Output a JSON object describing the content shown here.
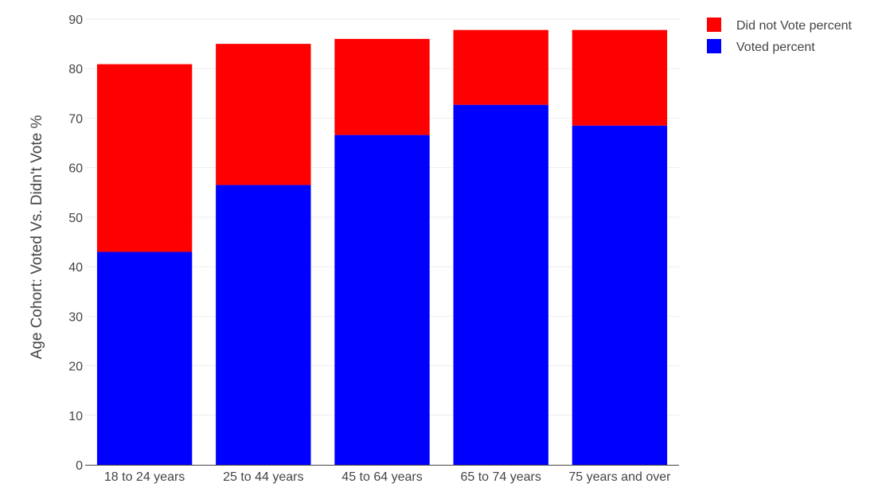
{
  "chart_data": {
    "type": "bar",
    "stacked": true,
    "categories": [
      "18 to 24 years",
      "25 to 44 years",
      "45 to 64 years",
      "65 to 74 years",
      "75 years and over"
    ],
    "series": [
      {
        "name": "Voted percent",
        "color": "#0000ff",
        "values": [
          43.0,
          56.5,
          66.6,
          72.7,
          68.5
        ]
      },
      {
        "name": "Did not Vote percent",
        "color": "#ff0000",
        "values": [
          37.9,
          28.5,
          19.4,
          15.1,
          19.3
        ]
      }
    ],
    "xlabel": "",
    "ylabel": "Age Cohort: Voted Vs. Didn't Vote %",
    "ylim": [
      0,
      90
    ],
    "yticks": [
      0,
      10,
      20,
      30,
      40,
      50,
      60,
      70,
      80,
      90
    ],
    "grid": true,
    "legend": {
      "position": "top-right",
      "entries": [
        {
          "label": "Did not Vote percent",
          "color": "#ff0000"
        },
        {
          "label": "Voted percent",
          "color": "#0000ff"
        }
      ]
    }
  }
}
